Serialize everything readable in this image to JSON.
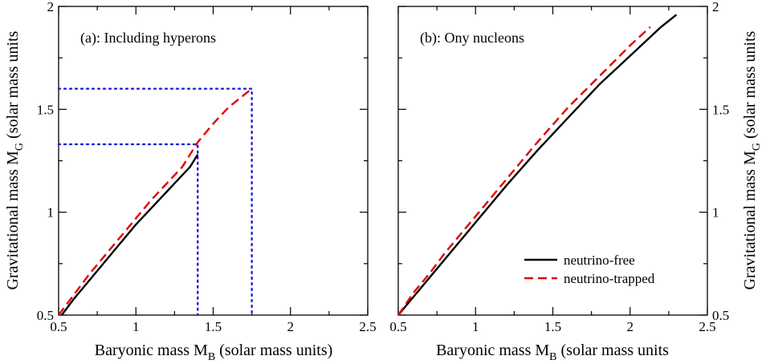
{
  "colors": {
    "neutrino_free": "#000000",
    "neutrino_trapped": "#e00000",
    "guides": "#2222dd"
  },
  "legend": {
    "free_label": "neutrino-free",
    "trapped_label": "neutrino-trapped"
  },
  "chart_data": [
    {
      "type": "line",
      "panel_label": "(a): Including hyperons",
      "xlabel_main": "Baryonic mass M",
      "xlabel_sub": "B",
      "xlabel_tail": " (solar mass units)",
      "ylabel_main": "Gravitational mass M",
      "ylabel_sub": "G",
      "ylabel_tail": " (solar mass units",
      "xlim": [
        0.5,
        2.5
      ],
      "ylim": [
        0.5,
        2.0
      ],
      "xticks": [
        0.5,
        1.0,
        1.5,
        2.0,
        2.5
      ],
      "xtick_labels": [
        "0.5",
        "1",
        "1.5",
        "2",
        "2.5"
      ],
      "yticks": [
        0.5,
        1.0,
        1.5,
        2.0
      ],
      "ytick_labels": [
        "0.5",
        "1",
        "1.5",
        "2"
      ],
      "series": [
        {
          "name": "neutrino-free",
          "style": "solid",
          "x": [
            0.52,
            0.6,
            0.7,
            0.8,
            0.9,
            1.0,
            1.1,
            1.2,
            1.3,
            1.35,
            1.4
          ],
          "y": [
            0.5,
            0.58,
            0.67,
            0.76,
            0.85,
            0.94,
            1.02,
            1.1,
            1.18,
            1.22,
            1.28
          ]
        },
        {
          "name": "neutrino-trapped",
          "style": "dashed",
          "x": [
            0.5,
            0.6,
            0.7,
            0.8,
            0.9,
            1.0,
            1.1,
            1.2,
            1.3,
            1.4,
            1.5,
            1.6,
            1.7,
            1.75
          ],
          "y": [
            0.5,
            0.6,
            0.7,
            0.79,
            0.88,
            0.97,
            1.06,
            1.14,
            1.22,
            1.34,
            1.43,
            1.51,
            1.57,
            1.6
          ]
        }
      ],
      "guides": [
        {
          "x": [
            0.5,
            1.4,
            1.4
          ],
          "y": [
            1.33,
            1.33,
            0.5
          ]
        },
        {
          "x": [
            0.5,
            1.75,
            1.75
          ],
          "y": [
            1.6,
            1.6,
            0.5
          ]
        }
      ]
    },
    {
      "type": "line",
      "panel_label": "(b): Ony nucleons",
      "xlabel_main": "Baryonic mass M",
      "xlabel_sub": "B",
      "xlabel_tail": " (solar mass units",
      "ylabel_main": "Gravitational mass M",
      "ylabel_sub": "G",
      "ylabel_tail": " (solar mass units",
      "xlim": [
        0.5,
        2.5
      ],
      "ylim": [
        0.5,
        2.0
      ],
      "xticks": [
        0.5,
        1.0,
        1.5,
        2.0,
        2.5
      ],
      "xtick_labels": [
        "0.5",
        "1",
        "1.5",
        "2",
        "2.5"
      ],
      "yticks": [
        0.5,
        1.0,
        1.5,
        2.0
      ],
      "ytick_labels": [
        "0.5",
        "1",
        "1.5",
        "2"
      ],
      "legend_position": "bottom-right",
      "series": [
        {
          "name": "neutrino-free",
          "style": "solid",
          "x": [
            0.5,
            0.6,
            0.7,
            0.8,
            0.9,
            1.0,
            1.2,
            1.4,
            1.6,
            1.8,
            2.0,
            2.2,
            2.3
          ],
          "y": [
            0.5,
            0.59,
            0.68,
            0.77,
            0.86,
            0.95,
            1.13,
            1.3,
            1.46,
            1.62,
            1.76,
            1.9,
            1.96
          ]
        },
        {
          "name": "neutrino-trapped",
          "style": "dashed",
          "x": [
            0.5,
            0.6,
            0.7,
            0.8,
            0.9,
            1.0,
            1.2,
            1.4,
            1.6,
            1.8,
            2.0,
            2.13
          ],
          "y": [
            0.5,
            0.61,
            0.7,
            0.8,
            0.89,
            0.98,
            1.16,
            1.34,
            1.51,
            1.66,
            1.81,
            1.9
          ]
        }
      ]
    }
  ]
}
